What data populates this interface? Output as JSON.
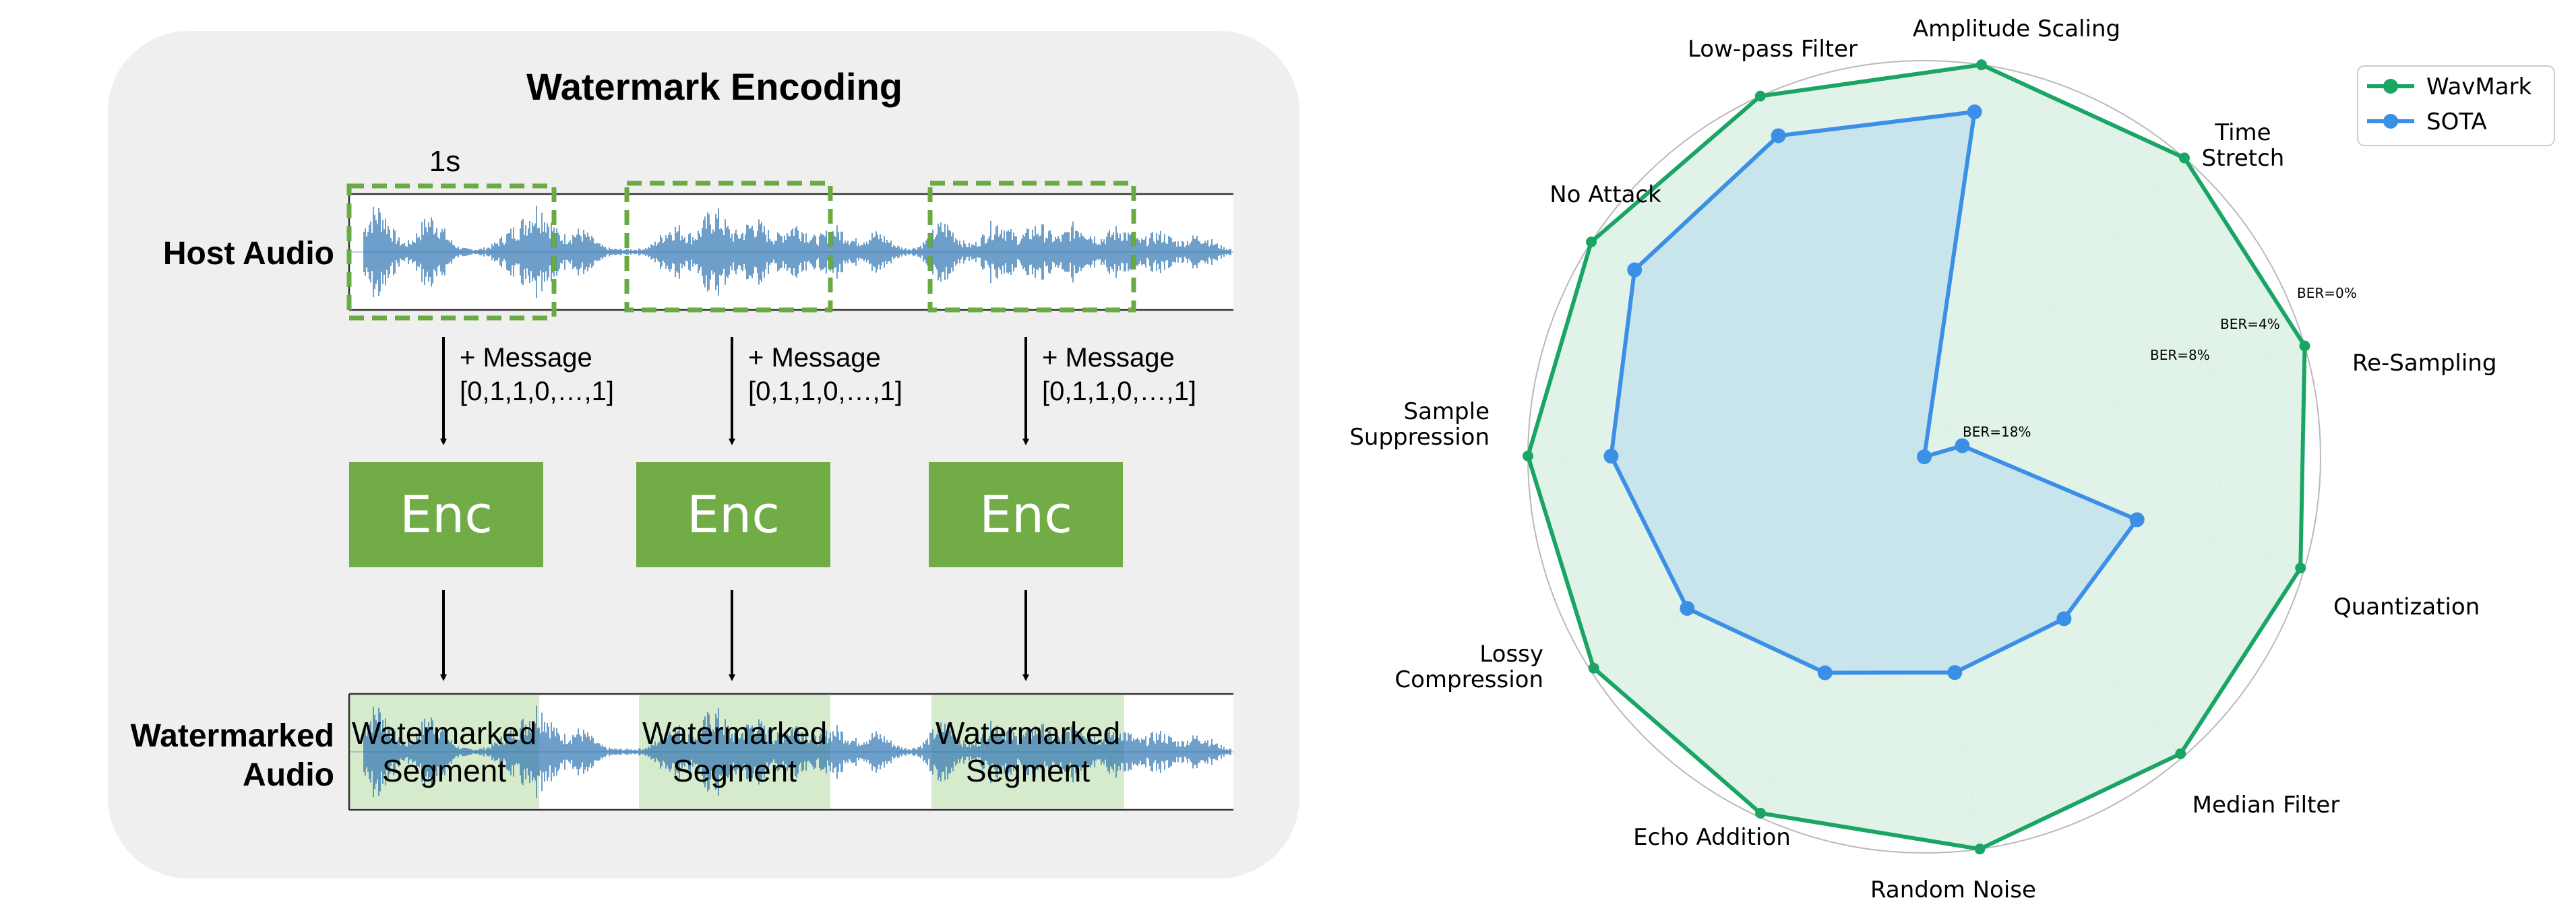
{
  "encoding": {
    "title": "Watermark Encoding",
    "host_label": "Host Audio",
    "watermarked_label": [
      "Watermarked",
      "Audio"
    ],
    "duration_label": "1s",
    "segments": [
      {
        "message_line1": "+ Message",
        "message_line2": "[0,1,1,0,…,1]",
        "encoder": "Enc",
        "segment_label": [
          "Watermarked",
          "Segment"
        ]
      },
      {
        "message_line1": "+ Message",
        "message_line2": "[0,1,1,0,…,1]",
        "encoder": "Enc",
        "segment_label": [
          "Watermarked",
          "Segment"
        ]
      },
      {
        "message_line1": "+ Message",
        "message_line2": "[0,1,1,0,…,1]",
        "encoder": "Enc",
        "segment_label": [
          "Watermarked",
          "Segment"
        ]
      }
    ],
    "colors": {
      "encoder": "#72ac46",
      "dashed_box": "#6aaa42",
      "segment_fill": "#d3e8c8",
      "waveform": "#2a72b0",
      "panel": "#efefef"
    }
  },
  "chart_data": {
    "type": "radar",
    "categories": [
      "Amplitude Scaling",
      "Time Stretch",
      "Re-Sampling",
      "Quantization",
      "Median Filter",
      "Random Noise",
      "Echo Addition",
      "Lossy Compression",
      "Sample Suppression",
      "No Attack",
      "Low-pass Filter"
    ],
    "category_lines": [
      [
        "Amplitude Scaling"
      ],
      [
        "Time",
        "Stretch"
      ],
      [
        "Re-Sampling"
      ],
      [
        "Quantization"
      ],
      [
        "Median Filter"
      ],
      [
        "Random Noise"
      ],
      [
        "Echo Addition"
      ],
      [
        "Lossy",
        "Compression"
      ],
      [
        "Sample",
        "Suppression"
      ],
      [
        "No Attack"
      ],
      [
        "Low-pass Filter"
      ]
    ],
    "radial_axis": {
      "labels": [
        "BER=18%",
        "BER=8%",
        "BER=4%",
        "BER=0%"
      ],
      "ring_values": [
        0.1,
        0.5,
        0.75,
        0.9,
        1.0
      ]
    },
    "series": [
      {
        "name": "WavMark",
        "values": [
          1.0,
          1.0,
          1.0,
          0.99,
          0.99,
          1.0,
          0.99,
          0.99,
          1.0,
          1.0,
          1.0
        ],
        "color": "#1aa565",
        "fill": "#dff2e8"
      },
      {
        "name": "SOTA",
        "values": [
          0.88,
          0.0,
          0.1,
          0.56,
          0.54,
          0.55,
          0.6,
          0.71,
          0.79,
          0.87,
          0.89
        ],
        "color": "#3b8fe6",
        "fill": "#c3e1ec"
      }
    ],
    "legend_position": "top-right",
    "grid": true
  }
}
